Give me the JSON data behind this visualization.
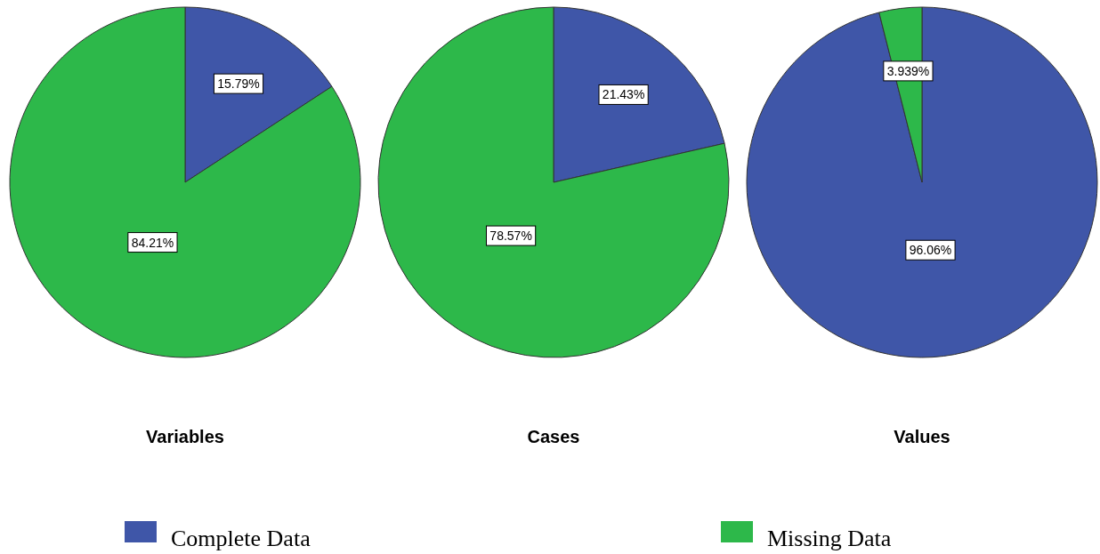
{
  "chart_data": [
    {
      "type": "pie",
      "title": "Variables",
      "categories": [
        "Complete Data",
        "Missing Data"
      ],
      "values": [
        15.79,
        84.21
      ],
      "value_labels": [
        "15.79%",
        "84.21%"
      ],
      "colors": [
        "#3f56a8",
        "#2db84a"
      ],
      "legend": "bottom"
    },
    {
      "type": "pie",
      "title": "Cases",
      "values": [
        21.43,
        78.57
      ],
      "value_labels": [
        "21.43%",
        "78.57%"
      ],
      "colors": [
        "#3f56a8",
        "#2db84a"
      ]
    },
    {
      "type": "pie",
      "title": "Values",
      "values": [
        96.06,
        3.939
      ],
      "value_labels": [
        "96.06%",
        "3.939%"
      ],
      "colors": [
        "#3f56a8",
        "#2db84a"
      ]
    }
  ]
}
